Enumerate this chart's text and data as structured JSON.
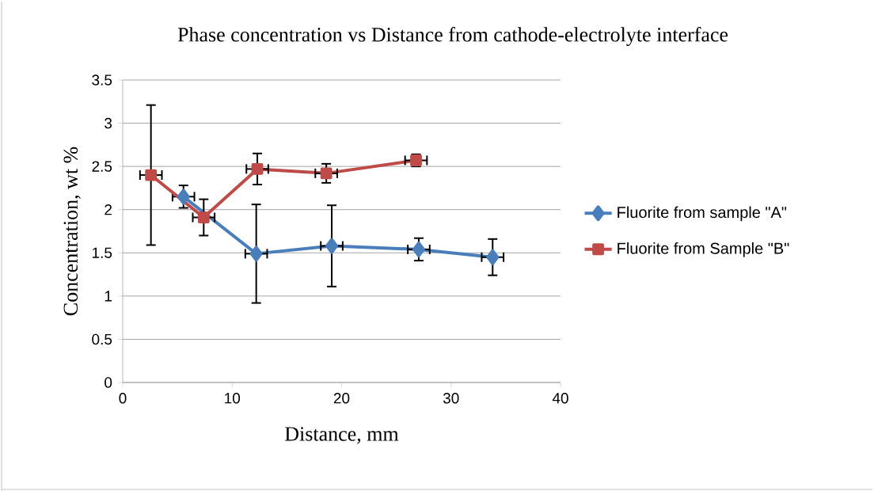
{
  "chart_data": {
    "type": "line",
    "title": "Phase concentration vs Distance from cathode-electrolyte interface",
    "xlabel": "Distance, mm",
    "ylabel": "Concentration, wt %",
    "xlim": [
      0,
      40
    ],
    "xticks": [
      0,
      10,
      20,
      30,
      40
    ],
    "ylim": [
      0,
      3.5
    ],
    "yticks": [
      0,
      0.5,
      1,
      1.5,
      2,
      2.5,
      3,
      3.5
    ],
    "grid": "y",
    "legend": "right",
    "series": [
      {
        "name": "Fluorite from sample \"A\"",
        "color": "#4a7ebb",
        "marker": "diamond",
        "x": [
          5.55,
          7.4,
          12.2,
          19.1,
          27.05,
          33.8
        ],
        "values": [
          2.15,
          null,
          1.49,
          1.58,
          1.54,
          1.45
        ],
        "errors": [
          0.13,
          null,
          0.57,
          0.47,
          0.13,
          0.21
        ],
        "xerrors": [
          1,
          null,
          1,
          1,
          1,
          1
        ]
      },
      {
        "name": "Fluorite from Sample \"B\"",
        "color": "#be4b48",
        "marker": "square",
        "x": [
          2.58,
          7.4,
          12.3,
          18.6,
          26.8
        ],
        "values": [
          2.4,
          1.91,
          2.47,
          2.42,
          2.57
        ],
        "errors": [
          0.81,
          0.21,
          0.18,
          0.11,
          0.07
        ],
        "xerrors": [
          1,
          1,
          1,
          1,
          1
        ]
      }
    ]
  }
}
